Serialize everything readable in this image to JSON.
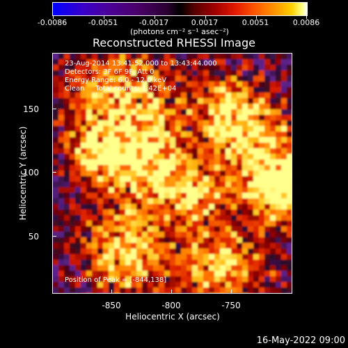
{
  "colorbar": {
    "tick_labels": [
      "-0.0086",
      "-0.0051",
      "-0.0017",
      "0.0017",
      "0.0051",
      "0.0086"
    ],
    "units_label": "(photons cm⁻² s⁻¹ asec⁻²)"
  },
  "title": "Reconstructed RHESSI Image",
  "info": {
    "time_range": "23-Aug-2014 13:41:52.000 to 13:43:44.000",
    "detectors": "Detectors: 3F 6F 9F, Att 0",
    "energy": "Energy Range: 6.0 - 12.0 keV",
    "method": "Clean     Total counts: 1.42E+04"
  },
  "peak": "Position of Peak = [-844,138]",
  "axes": {
    "xlabel": "Heliocentric X (arcsec)",
    "ylabel": "Heliocentric Y (arcsec)",
    "x_ticks": [
      "-850",
      "-800",
      "-750"
    ],
    "y_ticks": [
      "150",
      "100",
      "50"
    ]
  },
  "date_stamp": "16-May-2022 09:00",
  "colors": {
    "background": "#000000",
    "frame": "#ffffff"
  }
}
